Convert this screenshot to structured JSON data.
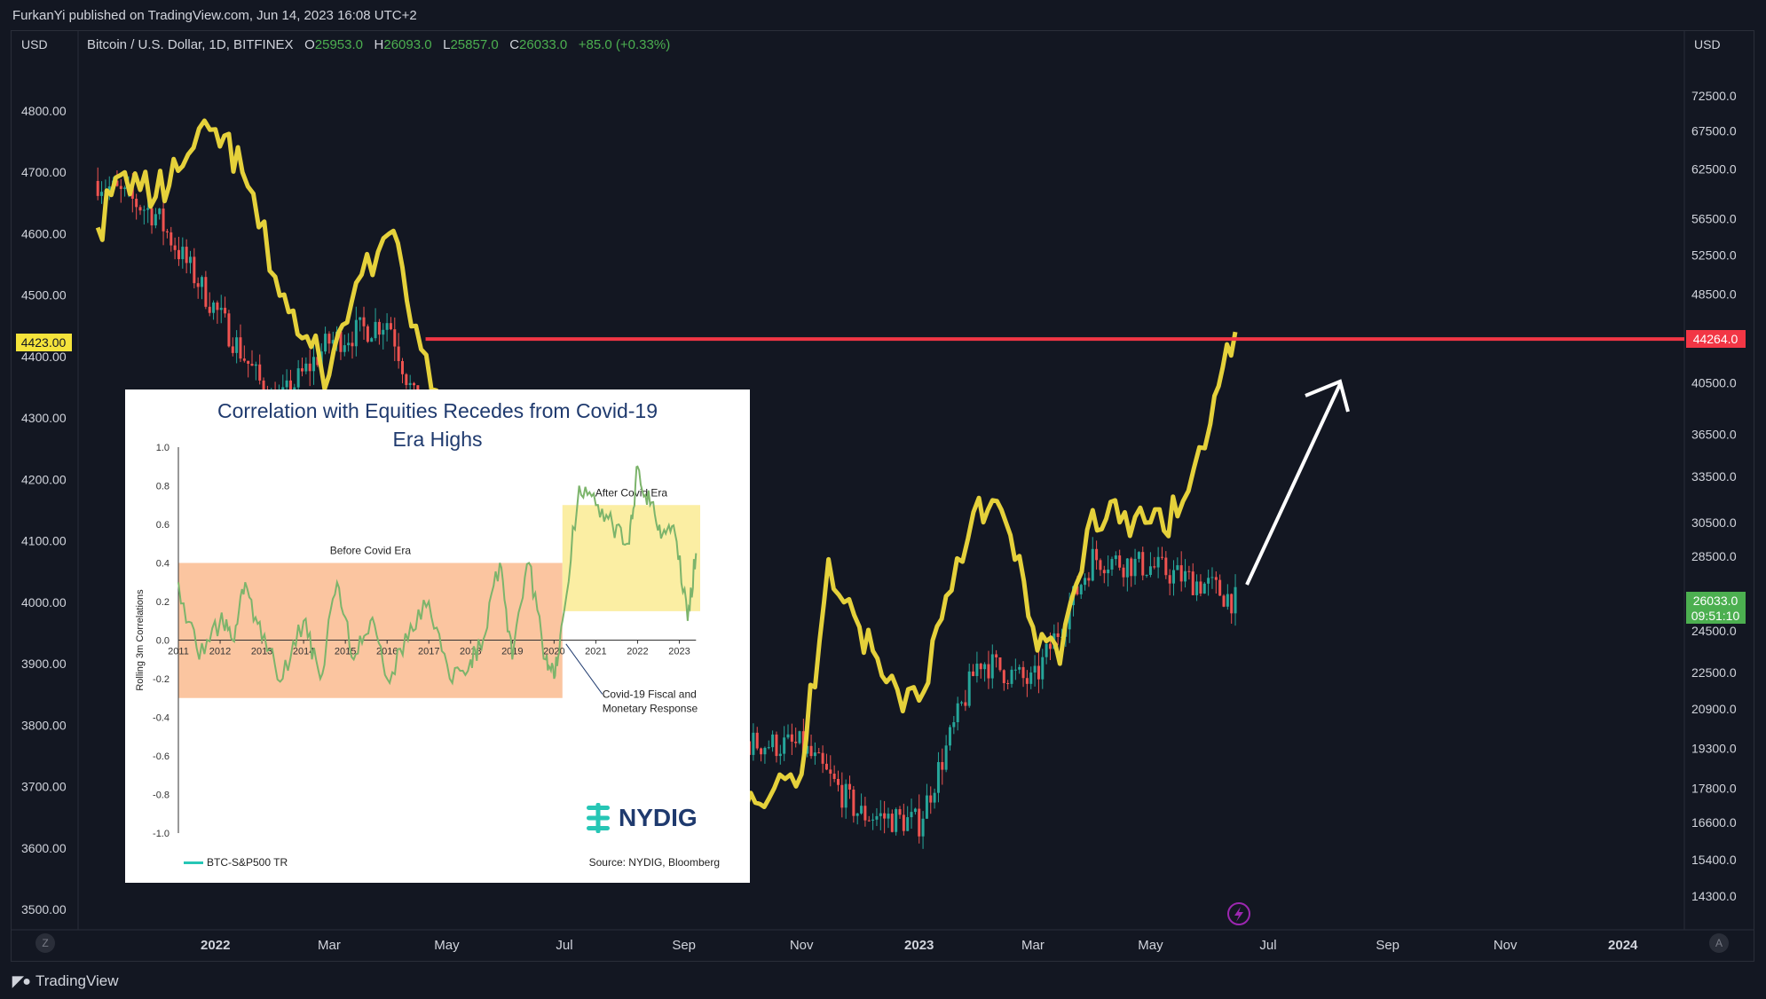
{
  "header": {
    "publisher": "FurkanYi published on TradingView.com, Jun 14, 2023 16:08 UTC+2"
  },
  "legend": {
    "symbol": "Bitcoin / U.S. Dollar, 1D, BITFINEX",
    "o_label": "O",
    "o_value": "25953.0",
    "h_label": "H",
    "h_value": "26093.0",
    "l_label": "L",
    "l_value": "25857.0",
    "c_label": "C",
    "c_value": "26033.0",
    "change": "+85.0 (+0.33%)"
  },
  "left_axis": {
    "unit": "USD",
    "ticks": [
      "4800.00",
      "4700.00",
      "4600.00",
      "4500.00",
      "4400.00",
      "4300.00",
      "4200.00",
      "4100.00",
      "4000.00",
      "3900.00",
      "3800.00",
      "3700.00",
      "3600.00",
      "3500.00"
    ],
    "current_label": "4423.00"
  },
  "right_axis": {
    "unit": "USD",
    "ticks": [
      "72500.0",
      "67500.0",
      "62500.0",
      "56500.0",
      "52500.0",
      "48500.0",
      "40500.0",
      "36500.0",
      "33500.0",
      "30500.0",
      "28500.0",
      "24500.0",
      "22500.0",
      "20900.0",
      "19300.0",
      "17800.0",
      "16600.0",
      "15400.0",
      "14300.0"
    ],
    "level_label": "44264.0",
    "price_label": "26033.0",
    "countdown_label": "09:51:10"
  },
  "x_axis": {
    "ticks": [
      "2022",
      "Mar",
      "May",
      "Jul",
      "Sep",
      "Nov",
      "2023",
      "Mar",
      "May",
      "Jul",
      "Sep",
      "Nov",
      "2024"
    ],
    "bold": [
      "2022",
      "2023",
      "2024"
    ]
  },
  "corner_buttons": {
    "left": "Z",
    "right": "A"
  },
  "footer": {
    "brand": "TradingView"
  },
  "colors": {
    "background": "#131722",
    "yellow_line": "#e5d13b",
    "resistance_line": "#f23645",
    "candle_up": "#26a69a",
    "candle_down": "#ef5350",
    "price_tag": "#4caf50"
  },
  "inset": {
    "title": "Correlation with Equities Recedes from Covid-19 Era Highs",
    "ylabel": "Rolling 3m Correlations",
    "y_ticks": [
      "1.0",
      "0.8",
      "0.6",
      "0.4",
      "0.2",
      "0.0",
      "-0.2",
      "-0.4",
      "-0.6",
      "-0.8",
      "-1.0"
    ],
    "x_ticks": [
      "2011",
      "2012",
      "2013",
      "2014",
      "2015",
      "2016",
      "2017",
      "2018",
      "2019",
      "2020",
      "2021",
      "2022",
      "2023"
    ],
    "before_label": "Before Covid Era",
    "after_label": "After Covid Era",
    "annotation": "Covid-19 Fiscal and Monetary Response",
    "legend": "BTC-S&P500 TR",
    "source": "Source: NYDIG, Bloomberg",
    "logo": "NYDIG"
  },
  "chart_data": [
    {
      "type": "line",
      "title": "",
      "series": [
        {
          "color": "#e5d13b",
          "axis": "left",
          "x": [
            "2021-11-01",
            "2021-11-15",
            "2021-12-01",
            "2021-12-15",
            "2022-01-01",
            "2022-01-15",
            "2022-02-01",
            "2022-02-15",
            "2022-03-01",
            "2022-03-15",
            "2022-04-01",
            "2022-04-15",
            "2022-05-01",
            "2022-05-15",
            "2022-06-01",
            "2022-06-15",
            "2022-07-01",
            "2022-07-15",
            "2022-08-01",
            "2022-08-15",
            "2022-09-01",
            "2022-09-15",
            "2022-10-01",
            "2022-10-15",
            "2022-11-01",
            "2022-11-15",
            "2022-12-01",
            "2022-12-15",
            "2023-01-01",
            "2023-01-15",
            "2023-02-01",
            "2023-02-15",
            "2023-03-01",
            "2023-03-15",
            "2023-04-01",
            "2023-04-15",
            "2023-05-01",
            "2023-05-15",
            "2023-06-01",
            "2023-06-14"
          ],
          "values": [
            4610,
            4700,
            4660,
            4710,
            4770,
            4700,
            4530,
            4430,
            4370,
            4520,
            4600,
            4450,
            4240,
            4020,
            3980,
            3700,
            3820,
            3860,
            4090,
            4280,
            3960,
            3900,
            3700,
            3680,
            3720,
            4070,
            3960,
            3870,
            3840,
            4010,
            4170,
            4130,
            3960,
            3900,
            4150,
            4130,
            4130,
            4140,
            4290,
            4440
          ]
        },
        {
          "color": "#f23645",
          "axis": "right",
          "name": "",
          "x": [
            "2022-04-20",
            "2023-11-30"
          ],
          "values": [
            44264,
            44264
          ]
        },
        {
          "color": "#787b86",
          "axis": "right",
          "type": "candles-summary",
          "x": [
            "2021-11-01",
            "2021-12-01",
            "2022-01-01",
            "2022-02-01",
            "2022-03-01",
            "2022-04-01",
            "2022-05-01",
            "2022-06-01",
            "2022-07-01",
            "2022-08-01",
            "2022-09-01",
            "2022-10-01",
            "2022-11-01",
            "2022-12-01",
            "2023-01-01",
            "2023-02-01",
            "2023-03-01",
            "2023-04-01",
            "2023-05-01",
            "2023-06-01",
            "2023-06-14"
          ],
          "values": [
            61000,
            57000,
            47000,
            38500,
            44000,
            46000,
            31700,
            30000,
            19300,
            23000,
            20000,
            19500,
            19400,
            16900,
            16600,
            23100,
            22000,
            28400,
            27900,
            26800,
            26033
          ]
        }
      ],
      "ylim_left": [
        3500,
        4800
      ],
      "ylim_right": [
        14300,
        72500
      ],
      "y_scale_right": "log",
      "annotations": [
        "upward arrow from ~26033 toward 44264 resistance level"
      ],
      "grid": false
    },
    {
      "type": "area",
      "title": "Correlation with Equities Recedes from Covid-19 Era Highs",
      "ylabel": "Rolling 3m Correlations",
      "ylim": [
        -1.0,
        1.0
      ],
      "series": [
        {
          "name": "BTC-S&P500 TR",
          "x": [
            2011.0,
            2011.5,
            2012.0,
            2012.3,
            2012.6,
            2013.0,
            2013.5,
            2014.0,
            2014.4,
            2014.8,
            2015.2,
            2015.6,
            2016.0,
            2016.5,
            2017.0,
            2017.5,
            2018.0,
            2018.3,
            2018.7,
            2019.0,
            2019.4,
            2019.8,
            2020.0,
            2020.2,
            2020.6,
            2021.0,
            2021.4,
            2021.8,
            2022.0,
            2022.3,
            2022.6,
            2022.9,
            2023.2,
            2023.4
          ],
          "values": [
            0.3,
            -0.1,
            0.1,
            0.0,
            0.3,
            0.0,
            -0.2,
            0.1,
            -0.2,
            0.3,
            -0.1,
            0.1,
            -0.2,
            0.0,
            0.2,
            -0.2,
            -0.1,
            0.0,
            0.4,
            -0.1,
            0.4,
            -0.1,
            -0.2,
            0.1,
            0.8,
            0.7,
            0.6,
            0.5,
            0.9,
            0.7,
            0.55,
            0.55,
            0.1,
            0.45
          ]
        }
      ],
      "regions": [
        {
          "label": "Before Covid Era",
          "x": [
            2011.0,
            2020.2
          ],
          "y": [
            -0.3,
            0.4
          ]
        },
        {
          "label": "After Covid Era",
          "x": [
            2020.2,
            2023.5
          ],
          "y": [
            0.15,
            0.7
          ]
        }
      ]
    }
  ]
}
